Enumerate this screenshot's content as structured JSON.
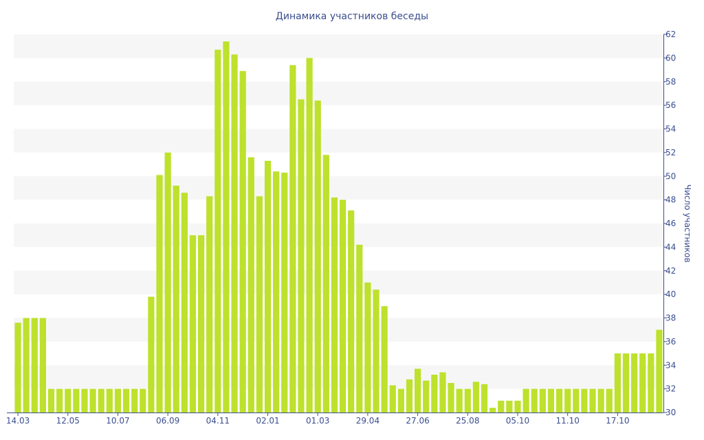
{
  "chart_data": {
    "type": "bar",
    "title": "Динамика участников беседы",
    "xlabel": "",
    "ylabel": "Число участников",
    "ylim": [
      30,
      62
    ],
    "yticks": [
      30,
      32,
      34,
      36,
      38,
      40,
      42,
      44,
      46,
      48,
      50,
      52,
      54,
      56,
      58,
      60,
      62
    ],
    "x_tick_labels": [
      {
        "index": 0,
        "label": "14.03"
      },
      {
        "index": 6,
        "label": "12.05"
      },
      {
        "index": 12,
        "label": "10.07"
      },
      {
        "index": 18,
        "label": "06.09"
      },
      {
        "index": 24,
        "label": "04.11"
      },
      {
        "index": 30,
        "label": "02.01"
      },
      {
        "index": 36,
        "label": "01.03"
      },
      {
        "index": 42,
        "label": "29.04"
      },
      {
        "index": 48,
        "label": "27.06"
      },
      {
        "index": 54,
        "label": "25.08"
      },
      {
        "index": 60,
        "label": "05.10"
      },
      {
        "index": 66,
        "label": "11.10"
      },
      {
        "index": 72,
        "label": "17.10"
      }
    ],
    "values": [
      37.6,
      38,
      38,
      38,
      32,
      32,
      32,
      32,
      32,
      32,
      32,
      32,
      32,
      32,
      32,
      32,
      39.8,
      50.1,
      52,
      49.2,
      48.6,
      45,
      45,
      48.3,
      60.7,
      61.4,
      60.3,
      58.9,
      51.6,
      48.3,
      51.3,
      50.4,
      50.3,
      59.4,
      56.5,
      60,
      56.4,
      51.8,
      48.2,
      48,
      47.1,
      44.2,
      41,
      40.4,
      39,
      32.3,
      32,
      32.8,
      33.7,
      32.7,
      33.2,
      33.4,
      32.5,
      32,
      32,
      32.6,
      32.4,
      30.4,
      31,
      31,
      31,
      32,
      32,
      32,
      32,
      32,
      32,
      32,
      32,
      32,
      32,
      32,
      35,
      35,
      35,
      35,
      35,
      37
    ],
    "colors": {
      "bar": "#bde12c",
      "band": "#f6f6f6",
      "text": "#3a4d8f",
      "axis": "#3a4d8f"
    },
    "grid": "alternating-bands",
    "y_axis_position": "right",
    "legend": "none"
  }
}
